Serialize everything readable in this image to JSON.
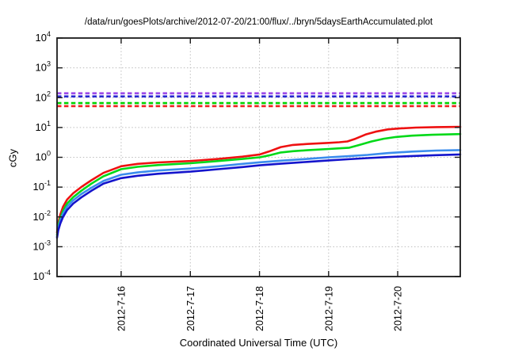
{
  "chart_data": {
    "type": "line",
    "title": "/data/run/goesPlots/archive/2012-07-20/21:00/flux/../bryn/5daysEarthAccumulated.plot",
    "ylabel": "cGy",
    "xlabel": "Coordinated Universal Time (UTC)",
    "y_scale": "log",
    "ylim": [
      0.0001,
      10000
    ],
    "y_tick_exponents": [
      -4,
      -3,
      -2,
      -1,
      0,
      1,
      2,
      3,
      4
    ],
    "x_ticks": [
      {
        "label": "2012-7-16",
        "pos": 0.159
      },
      {
        "label": "2012-7-17",
        "pos": 0.3306
      },
      {
        "label": "2012-7-18",
        "pos": 0.5021
      },
      {
        "label": "2012-7-19",
        "pos": 0.6735
      },
      {
        "label": "2012-7-20",
        "pos": 0.8448
      }
    ],
    "grid": true,
    "legend": "none",
    "border_color": "#1a1a1a",
    "grid_color": "#bdbdbd",
    "thresholds": [
      {
        "name": "purple-limit",
        "color": "#9d4ce8",
        "value": 140
      },
      {
        "name": "blue-limit",
        "color": "#2626cf",
        "value": 110
      },
      {
        "name": "green-limit",
        "color": "#00d400",
        "value": 66
      },
      {
        "name": "red-limit",
        "color": "#ee2222",
        "value": 52
      }
    ],
    "series": [
      {
        "name": "red",
        "color": "#ee1111",
        "points": [
          [
            0.0,
            0.003
          ],
          [
            0.003,
            0.006
          ],
          [
            0.008,
            0.012
          ],
          [
            0.015,
            0.022
          ],
          [
            0.025,
            0.038
          ],
          [
            0.04,
            0.062
          ],
          [
            0.06,
            0.1
          ],
          [
            0.085,
            0.17
          ],
          [
            0.115,
            0.3
          ],
          [
            0.159,
            0.5
          ],
          [
            0.2,
            0.6
          ],
          [
            0.25,
            0.67
          ],
          [
            0.331,
            0.75
          ],
          [
            0.4,
            0.88
          ],
          [
            0.46,
            1.05
          ],
          [
            0.503,
            1.25
          ],
          [
            0.525,
            1.55
          ],
          [
            0.555,
            2.2
          ],
          [
            0.585,
            2.6
          ],
          [
            0.62,
            2.8
          ],
          [
            0.674,
            3.05
          ],
          [
            0.7,
            3.2
          ],
          [
            0.72,
            3.4
          ],
          [
            0.74,
            4.2
          ],
          [
            0.765,
            5.8
          ],
          [
            0.79,
            7.2
          ],
          [
            0.82,
            8.6
          ],
          [
            0.85,
            9.3
          ],
          [
            0.89,
            9.9
          ],
          [
            0.94,
            10.3
          ],
          [
            1.0,
            10.5
          ]
        ]
      },
      {
        "name": "green",
        "color": "#00d918",
        "points": [
          [
            0.0,
            0.0025
          ],
          [
            0.003,
            0.005
          ],
          [
            0.008,
            0.009
          ],
          [
            0.015,
            0.016
          ],
          [
            0.025,
            0.028
          ],
          [
            0.04,
            0.046
          ],
          [
            0.06,
            0.075
          ],
          [
            0.085,
            0.13
          ],
          [
            0.115,
            0.23
          ],
          [
            0.159,
            0.4
          ],
          [
            0.2,
            0.48
          ],
          [
            0.25,
            0.55
          ],
          [
            0.331,
            0.63
          ],
          [
            0.4,
            0.75
          ],
          [
            0.46,
            0.88
          ],
          [
            0.503,
            1.0
          ],
          [
            0.525,
            1.15
          ],
          [
            0.555,
            1.45
          ],
          [
            0.585,
            1.6
          ],
          [
            0.62,
            1.72
          ],
          [
            0.674,
            1.9
          ],
          [
            0.7,
            2.0
          ],
          [
            0.725,
            2.1
          ],
          [
            0.75,
            2.6
          ],
          [
            0.78,
            3.4
          ],
          [
            0.81,
            4.2
          ],
          [
            0.84,
            4.8
          ],
          [
            0.88,
            5.3
          ],
          [
            0.93,
            5.7
          ],
          [
            1.0,
            6.0
          ]
        ]
      },
      {
        "name": "light-blue",
        "color": "#3a8ced",
        "points": [
          [
            0.0,
            0.0022
          ],
          [
            0.003,
            0.004
          ],
          [
            0.008,
            0.0075
          ],
          [
            0.015,
            0.013
          ],
          [
            0.025,
            0.022
          ],
          [
            0.04,
            0.036
          ],
          [
            0.06,
            0.058
          ],
          [
            0.085,
            0.095
          ],
          [
            0.115,
            0.16
          ],
          [
            0.159,
            0.26
          ],
          [
            0.2,
            0.31
          ],
          [
            0.25,
            0.36
          ],
          [
            0.331,
            0.42
          ],
          [
            0.4,
            0.5
          ],
          [
            0.46,
            0.6
          ],
          [
            0.503,
            0.68
          ],
          [
            0.555,
            0.77
          ],
          [
            0.62,
            0.88
          ],
          [
            0.674,
            1.0
          ],
          [
            0.72,
            1.08
          ],
          [
            0.77,
            1.2
          ],
          [
            0.82,
            1.38
          ],
          [
            0.88,
            1.55
          ],
          [
            0.94,
            1.68
          ],
          [
            1.0,
            1.75
          ]
        ]
      },
      {
        "name": "dark-blue",
        "color": "#1414cc",
        "points": [
          [
            0.0,
            0.002
          ],
          [
            0.003,
            0.0035
          ],
          [
            0.008,
            0.006
          ],
          [
            0.015,
            0.01
          ],
          [
            0.025,
            0.017
          ],
          [
            0.04,
            0.028
          ],
          [
            0.06,
            0.045
          ],
          [
            0.085,
            0.075
          ],
          [
            0.115,
            0.13
          ],
          [
            0.159,
            0.2
          ],
          [
            0.2,
            0.24
          ],
          [
            0.25,
            0.28
          ],
          [
            0.331,
            0.33
          ],
          [
            0.4,
            0.4
          ],
          [
            0.46,
            0.47
          ],
          [
            0.503,
            0.54
          ],
          [
            0.555,
            0.61
          ],
          [
            0.62,
            0.7
          ],
          [
            0.674,
            0.79
          ],
          [
            0.72,
            0.86
          ],
          [
            0.77,
            0.94
          ],
          [
            0.82,
            1.02
          ],
          [
            0.88,
            1.1
          ],
          [
            0.94,
            1.18
          ],
          [
            1.0,
            1.25
          ]
        ]
      }
    ]
  }
}
